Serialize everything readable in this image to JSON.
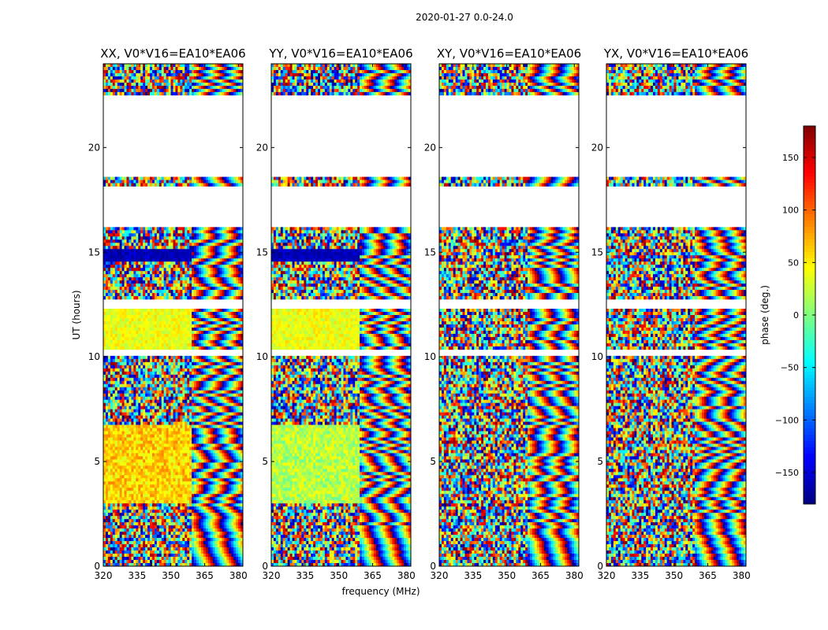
{
  "chart_data": {
    "type": "heatmap",
    "title": "2020-01-27 0.0-24.0",
    "xlabel": "frequency (MHz)",
    "ylabel": "UT (hours)",
    "xlim": [
      320,
      382
    ],
    "ylim": [
      0,
      24
    ],
    "x_ticks": [
      320,
      335,
      350,
      365,
      380
    ],
    "y_ticks": [
      0,
      5,
      10,
      15,
      20
    ],
    "colorbar": {
      "label": "phase (deg.)",
      "colormap": "jet",
      "range": [
        -180,
        180
      ],
      "ticks": [
        -150,
        -100,
        -50,
        0,
        50,
        100,
        150
      ],
      "tick_labels": [
        "−150",
        "−100",
        "−50",
        "0",
        "50",
        "100",
        "150"
      ]
    },
    "panels": [
      {
        "title": "XX, V0*V16=EA10*EA06",
        "polarization": "XX"
      },
      {
        "title": "YY, V0*V16=EA10*EA06",
        "polarization": "YY"
      },
      {
        "title": "XY, V0*V16=EA10*EA06",
        "polarization": "XY"
      },
      {
        "title": "YX, V0*V16=EA10*EA06",
        "polarization": "YX"
      }
    ],
    "flagged_gaps_ut": [
      [
        22.5,
        18.6
      ],
      [
        18.2,
        16.2
      ],
      [
        12.8,
        12.3
      ],
      [
        10.4,
        10.1
      ]
    ],
    "grid": false
  }
}
